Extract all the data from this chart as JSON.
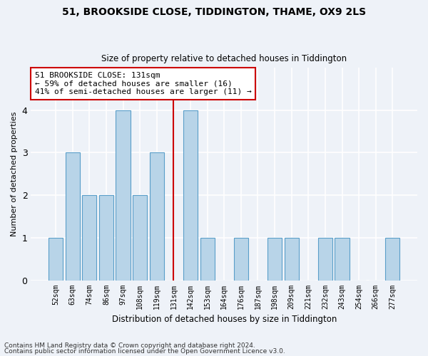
{
  "title1": "51, BROOKSIDE CLOSE, TIDDINGTON, THAME, OX9 2LS",
  "title2": "Size of property relative to detached houses in Tiddington",
  "xlabel": "Distribution of detached houses by size in Tiddington",
  "ylabel": "Number of detached properties",
  "footnote1": "Contains HM Land Registry data © Crown copyright and database right 2024.",
  "footnote2": "Contains public sector information licensed under the Open Government Licence v3.0.",
  "categories": [
    "52sqm",
    "63sqm",
    "74sqm",
    "86sqm",
    "97sqm",
    "108sqm",
    "119sqm",
    "131sqm",
    "142sqm",
    "153sqm",
    "164sqm",
    "176sqm",
    "187sqm",
    "198sqm",
    "209sqm",
    "221sqm",
    "232sqm",
    "243sqm",
    "254sqm",
    "266sqm",
    "277sqm"
  ],
  "values": [
    1,
    3,
    2,
    2,
    4,
    2,
    3,
    0,
    4,
    1,
    0,
    1,
    0,
    1,
    1,
    0,
    1,
    1,
    0,
    0,
    1
  ],
  "bar_color": "#b8d4e8",
  "bar_edge_color": "#5a9ec9",
  "highlight_x": "131sqm",
  "highlight_color": "#cc0000",
  "annotation_title": "51 BROOKSIDE CLOSE: 131sqm",
  "annotation_line1": "← 59% of detached houses are smaller (16)",
  "annotation_line2": "41% of semi-detached houses are larger (11) →",
  "annotation_box_color": "#ffffff",
  "annotation_box_edge": "#cc0000",
  "ylim": [
    0,
    5
  ],
  "yticks": [
    0,
    1,
    2,
    3,
    4
  ],
  "background_color": "#eef2f8"
}
